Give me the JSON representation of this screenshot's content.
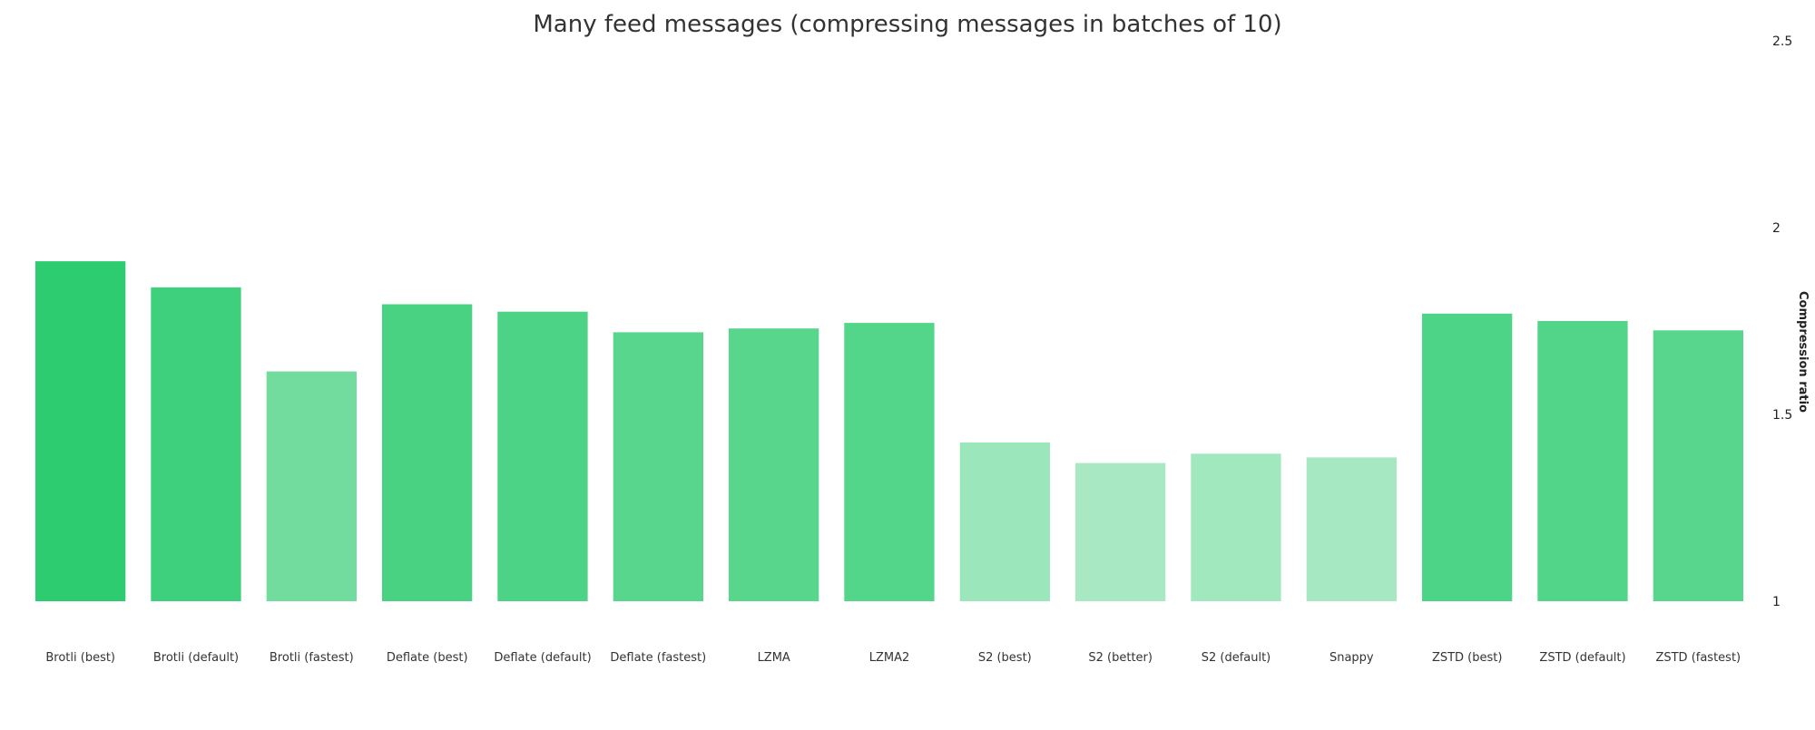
{
  "chart_data": {
    "type": "bar",
    "title": "Many feed messages (compressing messages in batches of 10)",
    "xlabel": "",
    "ylabel": "Compression ratio",
    "ylim": [
      1,
      2.5
    ],
    "yticks": [
      1,
      1.5,
      2,
      2.5
    ],
    "ytick_labels": [
      "1",
      "1.5",
      "2",
      "2.5"
    ],
    "y_axis_side": "right",
    "grid": false,
    "categories": [
      "Brotli (best)",
      "Brotli (default)",
      "Brotli (fastest)",
      "Deflate (best)",
      "Deflate (default)",
      "Deflate (fastest)",
      "LZMA",
      "LZMA2",
      "S2 (best)",
      "S2 (better)",
      "S2 (default)",
      "Snappy",
      "ZSTD (best)",
      "ZSTD (default)",
      "ZSTD (fastest)"
    ],
    "values": [
      1.91,
      1.84,
      1.615,
      1.795,
      1.775,
      1.72,
      1.73,
      1.745,
      1.425,
      1.37,
      1.395,
      1.385,
      1.77,
      1.75,
      1.725
    ],
    "colors": {
      "bar_max": "#2ecc71",
      "bar_min": "#a8e9c3"
    }
  }
}
